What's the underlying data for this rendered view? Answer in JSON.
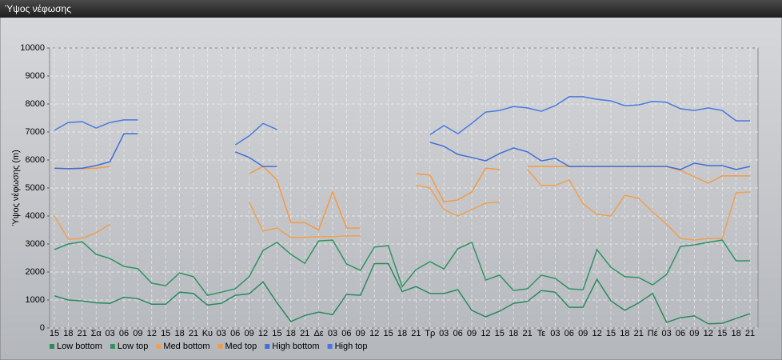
{
  "chart_data": {
    "type": "line",
    "title": "Ύψος νέφωσης",
    "ylabel": "Ύψος νέφωσης (m)",
    "categories": [
      "15",
      "18",
      "21",
      "Σα",
      "03",
      "06",
      "09",
      "12",
      "15",
      "18",
      "21",
      "Κυ",
      "03",
      "06",
      "09",
      "12",
      "15",
      "18",
      "21",
      "Δε",
      "03",
      "06",
      "09",
      "12",
      "15",
      "18",
      "21",
      "Τρ",
      "03",
      "06",
      "09",
      "12",
      "15",
      "18",
      "21",
      "Τε",
      "03",
      "06",
      "09",
      "12",
      "15",
      "18",
      "21",
      "Πέ",
      "03",
      "06",
      "09",
      "12",
      "15",
      "18",
      "21"
    ],
    "ylim": [
      0,
      10000
    ],
    "yticks": [
      0,
      1000,
      2000,
      3000,
      4000,
      5000,
      6000,
      7000,
      8000,
      9000,
      10000
    ],
    "grid": true,
    "legend": "bottom-left",
    "series": [
      {
        "name": "Low bottom",
        "color": "#2a8a5c",
        "values": [
          1150,
          1000,
          970,
          900,
          880,
          1100,
          1050,
          850,
          850,
          1280,
          1230,
          820,
          880,
          1170,
          1220,
          1650,
          900,
          230,
          450,
          570,
          480,
          1200,
          1170,
          2300,
          2300,
          1300,
          1480,
          1230,
          1230,
          1370,
          630,
          400,
          600,
          880,
          950,
          1340,
          1280,
          740,
          740,
          1740,
          970,
          630,
          900,
          1230,
          200,
          370,
          430,
          150,
          170,
          340,
          510
        ]
      },
      {
        "name": "Low top",
        "color": "#2f9460",
        "values": [
          2800,
          3000,
          3080,
          2630,
          2480,
          2200,
          2120,
          1600,
          1510,
          1970,
          1830,
          1170,
          1280,
          1400,
          1830,
          2770,
          3060,
          2630,
          2310,
          3110,
          3140,
          2290,
          2060,
          2890,
          2940,
          1480,
          2090,
          2370,
          2110,
          2830,
          3060,
          1710,
          1890,
          1340,
          1400,
          1890,
          1770,
          1400,
          1370,
          2800,
          2170,
          1830,
          1800,
          1540,
          1910,
          2910,
          2970,
          3060,
          3140,
          2400,
          2400
        ]
      },
      {
        "name": "Med bottom",
        "color": "#f0a050",
        "values": [
          4000,
          3170,
          3200,
          3400,
          3710,
          null,
          null,
          null,
          null,
          null,
          null,
          null,
          null,
          null,
          4510,
          3460,
          3570,
          3230,
          3230,
          3260,
          3260,
          3290,
          3290,
          null,
          null,
          null,
          5100,
          5000,
          4230,
          4000,
          4230,
          4460,
          4490,
          null,
          5660,
          5090,
          5090,
          5290,
          4430,
          4060,
          4000,
          4740,
          4630,
          4140,
          3710,
          3200,
          3140,
          3200,
          3200,
          4830,
          4860
        ]
      },
      {
        "name": "Med top",
        "color": "#f39a45",
        "values": [
          5710,
          5690,
          5690,
          5710,
          5770,
          null,
          null,
          null,
          null,
          null,
          null,
          null,
          null,
          null,
          5510,
          5770,
          5290,
          3760,
          3760,
          3500,
          4860,
          3570,
          3570,
          null,
          null,
          null,
          5510,
          5460,
          4510,
          4570,
          4860,
          5710,
          5660,
          null,
          5770,
          5770,
          5770,
          5770,
          5770,
          5770,
          5770,
          5770,
          5770,
          5770,
          5770,
          5630,
          5400,
          5170,
          5430,
          5430,
          5430
        ]
      },
      {
        "name": "High bottom",
        "color": "#3f6fd8",
        "values": [
          5710,
          5690,
          5710,
          5800,
          5940,
          6940,
          6940,
          null,
          null,
          null,
          null,
          null,
          null,
          6290,
          6090,
          5770,
          5770,
          null,
          null,
          null,
          null,
          null,
          null,
          null,
          null,
          null,
          null,
          6630,
          6490,
          6200,
          6090,
          5970,
          6230,
          6430,
          6290,
          5970,
          6060,
          5770,
          5770,
          5770,
          5770,
          5770,
          5770,
          5770,
          5770,
          5660,
          5890,
          5800,
          5800,
          5660,
          5770
        ]
      },
      {
        "name": "High top",
        "color": "#4a78e0",
        "values": [
          7060,
          7340,
          7370,
          7140,
          7340,
          7430,
          7430,
          null,
          null,
          null,
          null,
          null,
          null,
          6540,
          6860,
          7310,
          7090,
          null,
          null,
          null,
          null,
          null,
          null,
          null,
          null,
          null,
          null,
          6910,
          7230,
          6940,
          7310,
          7710,
          7770,
          7910,
          7860,
          7740,
          7940,
          8260,
          8260,
          8170,
          8110,
          7940,
          7970,
          8090,
          8060,
          7830,
          7770,
          7860,
          7770,
          7400,
          7400
        ]
      }
    ]
  }
}
